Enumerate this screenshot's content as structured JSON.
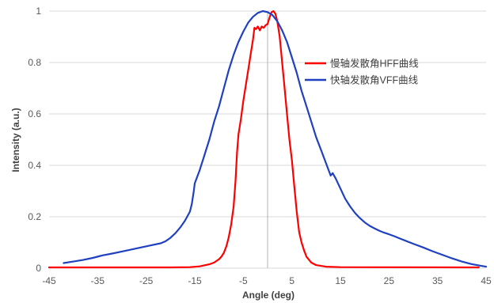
{
  "chart_data": {
    "type": "line",
    "xlabel": "Angle (deg)",
    "ylabel": "Intensity (a.u.)",
    "xlim": [
      -45,
      45
    ],
    "ylim": [
      0,
      1
    ],
    "xticks": [
      -45,
      -35,
      -25,
      -15,
      -5,
      5,
      15,
      25,
      35,
      45
    ],
    "yticks": [
      0,
      0.2,
      0.4,
      0.6,
      0.8,
      1
    ],
    "grid": "horizontal",
    "legend": "center-right",
    "reference_line_x": 0,
    "series": [
      {
        "name": "慢轴发散角HFF曲线",
        "color": "#ff0000",
        "x": [
          -45,
          -20,
          -16,
          -14,
          -12,
          -11,
          -10,
          -9.5,
          -9,
          -8.5,
          -8,
          -7.5,
          -7,
          -6.6,
          -6.3,
          -6,
          -5.5,
          -5,
          -4.5,
          -4,
          -3.5,
          -3,
          -2.7,
          -2.4,
          -2,
          -1.6,
          -1.2,
          -0.8,
          -0.4,
          0,
          0.4,
          0.8,
          1.2,
          1.6,
          2,
          2.5,
          3,
          3.5,
          4,
          4.5,
          5,
          5.5,
          6,
          6.5,
          7,
          7.5,
          8,
          9,
          10,
          12,
          15,
          43.5
        ],
        "y": [
          0.003,
          0.003,
          0.004,
          0.007,
          0.015,
          0.022,
          0.035,
          0.045,
          0.06,
          0.085,
          0.12,
          0.17,
          0.24,
          0.34,
          0.45,
          0.52,
          0.58,
          0.65,
          0.71,
          0.77,
          0.83,
          0.89,
          0.935,
          0.93,
          0.94,
          0.925,
          0.94,
          0.935,
          0.945,
          0.95,
          0.975,
          0.995,
          1.0,
          0.99,
          0.96,
          0.9,
          0.8,
          0.7,
          0.6,
          0.5,
          0.42,
          0.32,
          0.22,
          0.14,
          0.1,
          0.07,
          0.045,
          0.022,
          0.012,
          0.006,
          0.004,
          0.003
        ]
      },
      {
        "name": "快轴发散角VFF曲线",
        "color": "#1f41c0",
        "x": [
          -42,
          -40,
          -38,
          -36,
          -34,
          -32,
          -30,
          -28,
          -26,
          -24,
          -22,
          -21,
          -20,
          -19,
          -18,
          -17,
          -16,
          -15.6,
          -15.2,
          -15,
          -14,
          -13,
          -12,
          -11,
          -10,
          -9,
          -8,
          -7,
          -6,
          -5,
          -4,
          -3,
          -2,
          -1,
          0,
          1,
          2,
          3,
          4,
          5,
          6,
          7,
          8,
          9,
          10,
          11,
          12,
          13,
          13.4,
          14,
          15,
          16,
          17,
          18,
          19,
          20,
          21,
          22,
          23,
          24,
          25,
          26,
          28,
          30,
          32,
          34,
          36,
          38,
          40,
          42,
          44,
          45
        ],
        "y": [
          0.02,
          0.026,
          0.032,
          0.04,
          0.05,
          0.057,
          0.065,
          0.073,
          0.081,
          0.089,
          0.097,
          0.105,
          0.118,
          0.136,
          0.158,
          0.185,
          0.22,
          0.25,
          0.3,
          0.33,
          0.38,
          0.44,
          0.5,
          0.57,
          0.63,
          0.7,
          0.77,
          0.83,
          0.88,
          0.92,
          0.955,
          0.978,
          0.993,
          1.0,
          0.996,
          0.985,
          0.96,
          0.925,
          0.88,
          0.82,
          0.76,
          0.69,
          0.63,
          0.57,
          0.51,
          0.46,
          0.41,
          0.36,
          0.37,
          0.35,
          0.31,
          0.27,
          0.24,
          0.215,
          0.195,
          0.178,
          0.165,
          0.155,
          0.146,
          0.138,
          0.132,
          0.125,
          0.11,
          0.095,
          0.081,
          0.066,
          0.052,
          0.038,
          0.026,
          0.016,
          0.009,
          0.006
        ]
      }
    ]
  }
}
